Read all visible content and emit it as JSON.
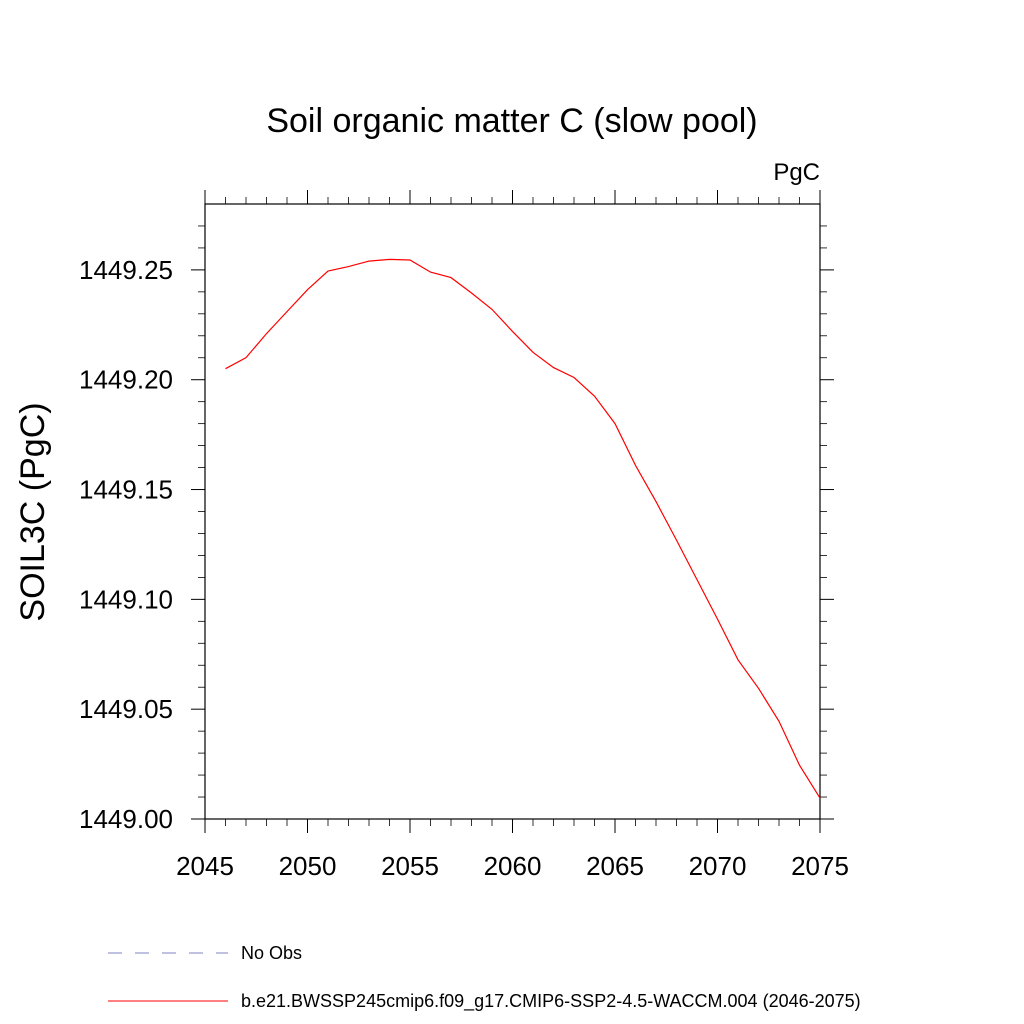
{
  "chart_data": {
    "type": "line",
    "title": "Soil organic matter C (slow pool)",
    "units_label": "PgC",
    "ylabel": "SOIL3C  (PgC)",
    "xlabel": "",
    "xlim": [
      2045,
      2075
    ],
    "ylim": [
      1449.0,
      1449.28
    ],
    "x_ticks": [
      2045,
      2050,
      2055,
      2060,
      2065,
      2070,
      2075
    ],
    "x_tick_labels": [
      "2045",
      "2050",
      "2055",
      "2060",
      "2065",
      "2070",
      "2075"
    ],
    "y_ticks": [
      1449.0,
      1449.05,
      1449.1,
      1449.15,
      1449.2,
      1449.25
    ],
    "y_tick_labels": [
      "1449.00",
      "1449.05",
      "1449.10",
      "1449.15",
      "1449.20",
      "1449.25"
    ],
    "grid": false,
    "legend_position": "bottom",
    "series": [
      {
        "name": "b.e21.BWSSP245cmip6.f09_g17.CMIP6-SSP2-4.5-WACCM.004 (2046-2075)",
        "color": "#ff0000",
        "style": "solid",
        "x": [
          2046,
          2047,
          2048,
          2049,
          2050,
          2051,
          2052,
          2053,
          2054,
          2055,
          2056,
          2057,
          2058,
          2059,
          2060,
          2061,
          2062,
          2063,
          2064,
          2065,
          2066,
          2067,
          2068,
          2069,
          2070,
          2071,
          2072,
          2073,
          2074,
          2075
        ],
        "y": [
          1449.205,
          1449.21,
          1449.221,
          1449.231,
          1449.241,
          1449.2495,
          1449.2515,
          1449.254,
          1449.2548,
          1449.2545,
          1449.249,
          1449.2465,
          1449.2395,
          1449.232,
          1449.222,
          1449.2125,
          1449.2055,
          1449.201,
          1449.1925,
          1449.18,
          1449.161,
          1449.1445,
          1449.127,
          1449.109,
          1449.091,
          1449.0725,
          1449.0595,
          1449.0445,
          1449.0245,
          1449.0095
        ]
      }
    ],
    "legend": [
      {
        "label": "No Obs",
        "color": "#8080c0",
        "style": "dashed"
      },
      {
        "label": "b.e21.BWSSP245cmip6.f09_g17.CMIP6-SSP2-4.5-WACCM.004 (2046-2075)",
        "color": "#ff0000",
        "style": "solid"
      }
    ]
  }
}
